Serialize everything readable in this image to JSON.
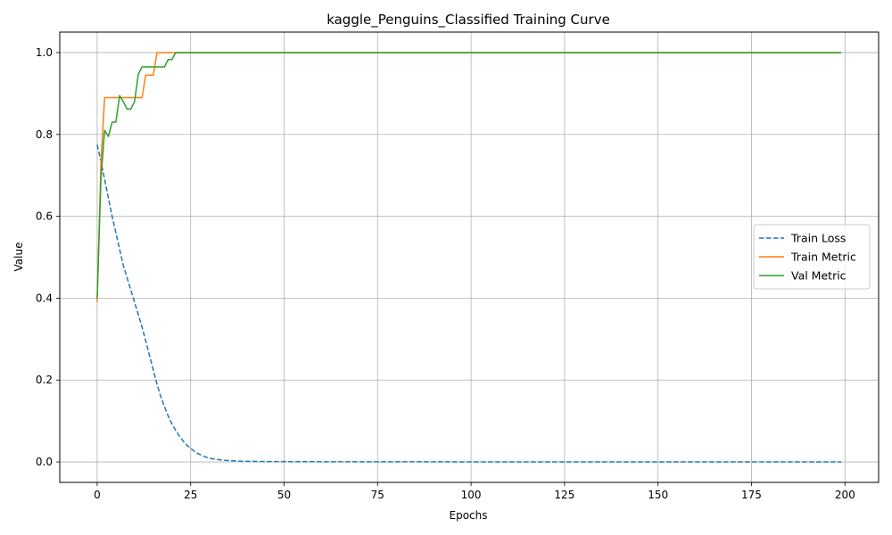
{
  "chart_data": {
    "type": "line",
    "title": "kaggle_Penguins_Classified Training Curve",
    "xlabel": "Epochs",
    "ylabel": "Value",
    "xlim": [
      -10,
      209
    ],
    "ylim": [
      -0.05,
      1.05
    ],
    "xticks": [
      0,
      25,
      50,
      75,
      100,
      125,
      150,
      175,
      200
    ],
    "yticks": [
      0.0,
      0.2,
      0.4,
      0.6,
      0.8,
      1.0
    ],
    "xtick_labels": [
      "0",
      "25",
      "50",
      "75",
      "100",
      "125",
      "150",
      "175",
      "200"
    ],
    "ytick_labels": [
      "0.0",
      "0.2",
      "0.4",
      "0.6",
      "0.8",
      "1.0"
    ],
    "grid": true,
    "legend_position": "center-right",
    "series": [
      {
        "name": "Train Loss",
        "color": "#1f77b4",
        "dash": "dashed",
        "x": [
          0,
          1,
          2,
          3,
          4,
          5,
          6,
          7,
          8,
          9,
          10,
          11,
          12,
          13,
          14,
          15,
          16,
          17,
          18,
          19,
          20,
          21,
          22,
          23,
          24,
          25,
          26,
          27,
          28,
          29,
          30,
          32,
          34,
          36,
          38,
          40,
          45,
          50,
          60,
          80,
          100,
          150,
          199
        ],
        "values": [
          0.775,
          0.735,
          0.69,
          0.645,
          0.6,
          0.56,
          0.52,
          0.48,
          0.45,
          0.42,
          0.39,
          0.36,
          0.33,
          0.295,
          0.26,
          0.225,
          0.19,
          0.16,
          0.135,
          0.112,
          0.093,
          0.077,
          0.063,
          0.051,
          0.041,
          0.033,
          0.026,
          0.02,
          0.016,
          0.012,
          0.009,
          0.006,
          0.004,
          0.003,
          0.002,
          0.0015,
          0.001,
          0.0008,
          0.0005,
          0.0003,
          0.0002,
          0.0001,
          0.0001
        ]
      },
      {
        "name": "Train Metric",
        "color": "#ff7f0e",
        "dash": "solid",
        "x": [
          0,
          1,
          2,
          3,
          4,
          5,
          6,
          7,
          8,
          9,
          10,
          11,
          12,
          13,
          14,
          15,
          16,
          17,
          18,
          19,
          20,
          21,
          22,
          199
        ],
        "values": [
          0.39,
          0.73,
          0.89,
          0.89,
          0.89,
          0.89,
          0.89,
          0.89,
          0.89,
          0.89,
          0.89,
          0.89,
          0.89,
          0.945,
          0.945,
          0.945,
          1.0,
          1.0,
          1.0,
          1.0,
          1.0,
          1.0,
          1.0,
          1.0
        ]
      },
      {
        "name": "Val Metric",
        "color": "#2ca02c",
        "dash": "solid",
        "x": [
          0,
          1,
          2,
          3,
          4,
          5,
          6,
          7,
          8,
          9,
          10,
          11,
          12,
          13,
          14,
          15,
          16,
          17,
          18,
          19,
          20,
          21,
          22,
          199
        ],
        "values": [
          0.4,
          0.69,
          0.81,
          0.795,
          0.83,
          0.83,
          0.895,
          0.88,
          0.862,
          0.862,
          0.88,
          0.947,
          0.965,
          0.965,
          0.965,
          0.965,
          0.965,
          0.965,
          0.965,
          0.983,
          0.983,
          1.0,
          1.0,
          1.0
        ]
      }
    ]
  }
}
